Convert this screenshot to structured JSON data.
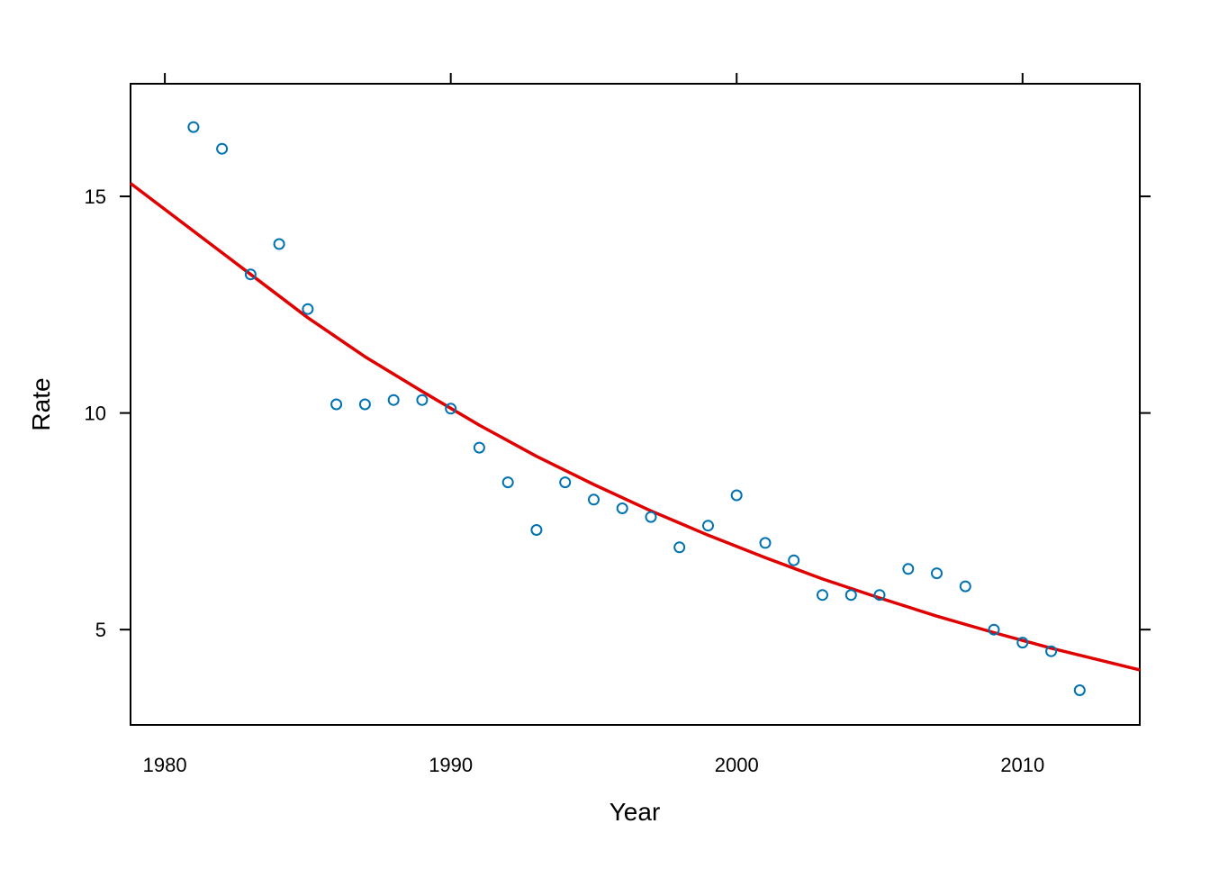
{
  "chart_data": {
    "type": "scatter",
    "xlabel": "Year",
    "ylabel": "Rate",
    "xlim": [
      1978.8,
      2014.1
    ],
    "ylim": [
      2.8,
      17.6
    ],
    "x_ticks": [
      1980,
      1990,
      2000,
      2010
    ],
    "y_ticks": [
      5,
      10,
      15
    ],
    "x_tick_labels": [
      "1980",
      "1990",
      "2000",
      "2010"
    ],
    "y_tick_labels": [
      "5",
      "10",
      "15"
    ],
    "grid": false,
    "series": [
      {
        "type": "scatter",
        "marker": "open-circle",
        "color": "#0072b2",
        "x": [
          1981,
          1982,
          1983,
          1984,
          1985,
          1986,
          1987,
          1988,
          1989,
          1990,
          1991,
          1992,
          1993,
          1994,
          1995,
          1996,
          1997,
          1998,
          1999,
          2000,
          2001,
          2002,
          2003,
          2004,
          2005,
          2006,
          2007,
          2008,
          2009,
          2010,
          2011,
          2012
        ],
        "y": [
          16.6,
          16.1,
          13.2,
          13.9,
          12.4,
          10.2,
          10.2,
          10.3,
          10.3,
          10.1,
          9.2,
          8.4,
          7.3,
          8.4,
          8.0,
          7.8,
          7.6,
          6.9,
          7.4,
          8.1,
          7.0,
          6.6,
          5.8,
          5.8,
          5.8,
          6.4,
          6.3,
          6.0,
          5.0,
          4.7,
          4.5,
          3.6
        ]
      },
      {
        "type": "line",
        "color": "#e00000",
        "x": [
          1978.8,
          1981,
          1983,
          1985,
          1987,
          1989,
          1991,
          1993,
          1995,
          1997,
          1999,
          2001,
          2003,
          2005,
          2007,
          2009,
          2011,
          2014.1
        ],
        "y": [
          15.3,
          14.2,
          13.2,
          12.2,
          11.3,
          10.5,
          9.72,
          9.0,
          8.35,
          7.74,
          7.18,
          6.66,
          6.17,
          5.73,
          5.31,
          4.93,
          4.57,
          4.07
        ]
      }
    ]
  }
}
